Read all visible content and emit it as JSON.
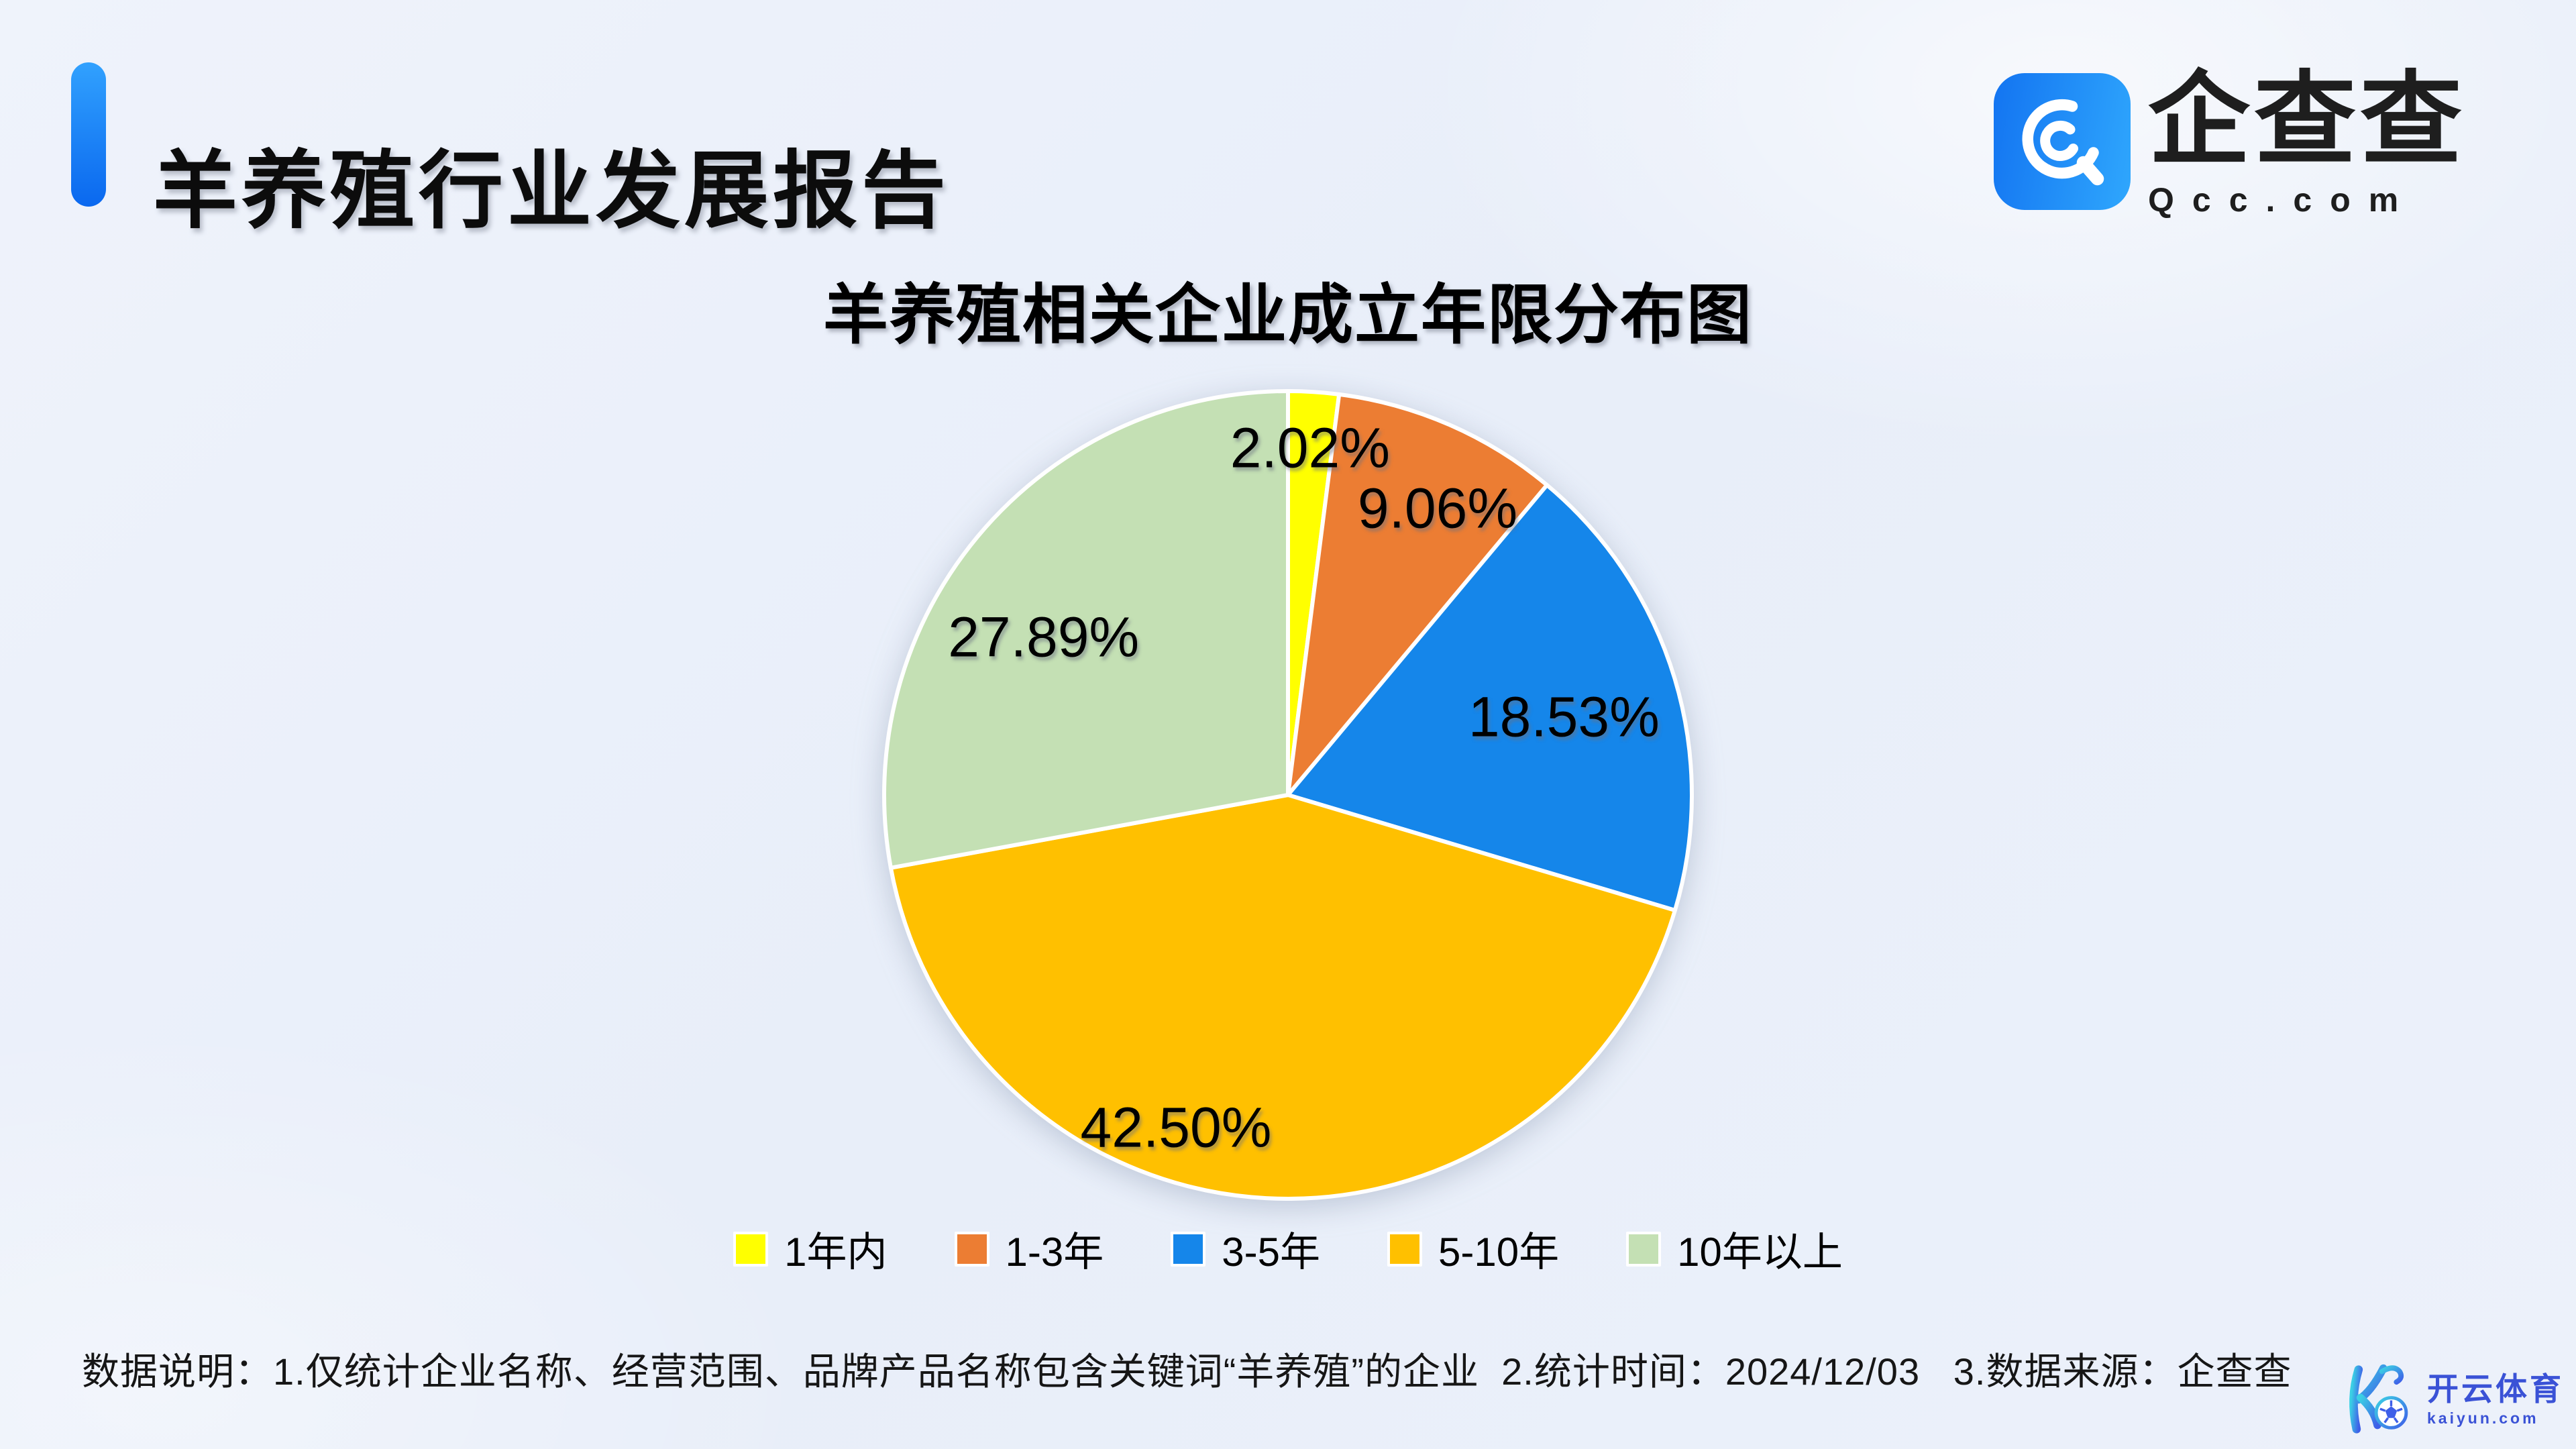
{
  "header": {
    "title": "羊养殖行业发展报告"
  },
  "brand": {
    "name": "企查查",
    "domain": "Qcc.com"
  },
  "chart_data": {
    "type": "pie",
    "title": "羊养殖相关企业成立年限分布图",
    "unit": "%",
    "start_angle": "12-oclock",
    "direction": "clockwise",
    "legend_position": "bottom",
    "categories": [
      "1年内",
      "1-3年",
      "3-5年",
      "5-10年",
      "10年以上"
    ],
    "values": [
      2.02,
      9.06,
      18.53,
      42.5,
      27.89
    ],
    "labels": [
      "2.02%",
      "9.06%",
      "18.53%",
      "42.50%",
      "27.89%"
    ],
    "colors": [
      "#FFFF00",
      "#EC7D33",
      "#1586EA",
      "#FFC000",
      "#C4E0B4"
    ],
    "slice_border_color": "#FFFFFF"
  },
  "footer": {
    "note": "数据说明：1.仅统计企业名称、经营范围、品牌产品名称包含关键词“羊养殖”的企业  2.统计时间：2024/12/03   3.数据来源：企查查"
  },
  "watermark": {
    "name": "开云体育",
    "domain": "kaiyun.com"
  }
}
